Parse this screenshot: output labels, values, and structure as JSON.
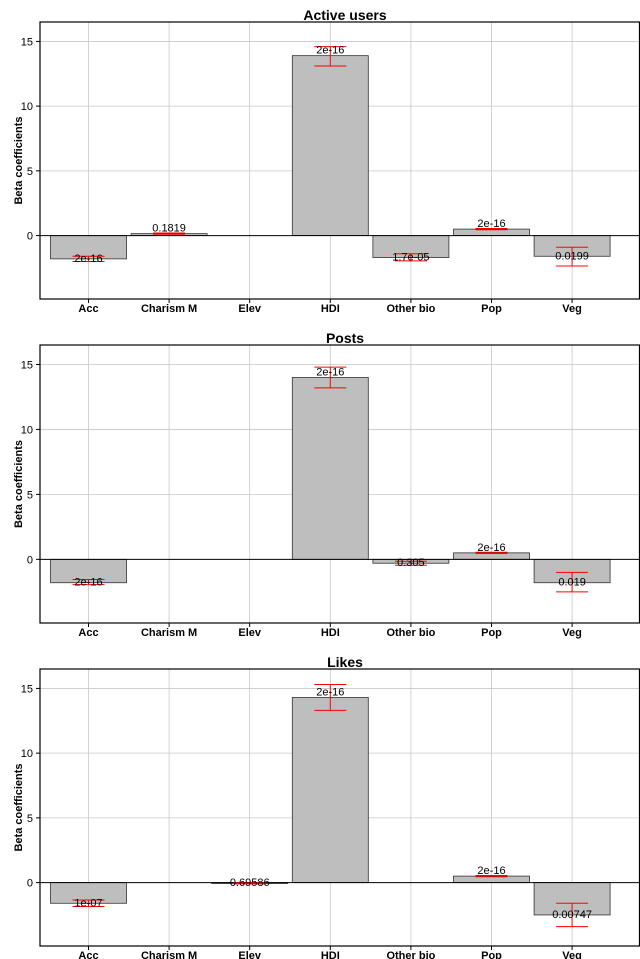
{
  "chart_data": [
    {
      "type": "bar",
      "title": "Active users",
      "ylabel": "Beta coefficients",
      "xlabel": "",
      "ylim": [
        -4.9,
        16.5
      ],
      "yticks": [
        0,
        5,
        10,
        15
      ],
      "grid": true,
      "categories": [
        "Acc",
        "Charism M",
        "Elev",
        "HDI",
        "Other bio",
        "Pop",
        "Veg"
      ],
      "values": [
        -1.8,
        0.15,
        null,
        13.9,
        -1.7,
        0.5,
        -1.6
      ],
      "error_low": [
        -2.0,
        0.1,
        null,
        13.1,
        -1.95,
        0.45,
        -2.35
      ],
      "error_high": [
        -1.6,
        0.2,
        null,
        14.6,
        -1.4,
        0.55,
        -0.9
      ],
      "annotations": [
        "2e-16",
        "0.1819",
        "",
        "2e-16",
        "1.7e-05",
        "2e-16",
        "0.0199"
      ],
      "colors": {
        "bar": "#bebebe",
        "error": "#ff0000"
      }
    },
    {
      "type": "bar",
      "title": "Posts",
      "ylabel": "Beta coefficients",
      "xlabel": "",
      "ylim": [
        -4.9,
        16.5
      ],
      "yticks": [
        0,
        5,
        10,
        15
      ],
      "grid": true,
      "categories": [
        "Acc",
        "Charism M",
        "Elev",
        "HDI",
        "Other bio",
        "Pop",
        "Veg"
      ],
      "values": [
        -1.8,
        null,
        null,
        14.0,
        -0.3,
        0.5,
        -1.8
      ],
      "error_low": [
        -1.95,
        null,
        null,
        13.2,
        -0.45,
        0.45,
        -2.5
      ],
      "error_high": [
        -1.55,
        null,
        null,
        14.8,
        -0.15,
        0.55,
        -1.0
      ],
      "annotations": [
        "2e-16",
        "",
        "",
        "2e-16",
        "0.305",
        "2e-16",
        "0.019"
      ],
      "colors": {
        "bar": "#bebebe",
        "error": "#ff0000"
      }
    },
    {
      "type": "bar",
      "title": "Likes",
      "ylabel": "Beta coefficients",
      "xlabel": "",
      "ylim": [
        -4.9,
        16.5
      ],
      "yticks": [
        0,
        5,
        10,
        15
      ],
      "grid": true,
      "categories": [
        "Acc",
        "Charism M",
        "Elev",
        "HDI",
        "Other bio",
        "Pop",
        "Veg"
      ],
      "values": [
        -1.6,
        null,
        -0.05,
        14.3,
        null,
        0.5,
        -2.5
      ],
      "error_low": [
        -1.85,
        null,
        -0.1,
        13.3,
        null,
        0.45,
        -3.4
      ],
      "error_high": [
        -1.35,
        null,
        0.0,
        15.3,
        null,
        0.55,
        -1.6
      ],
      "annotations": [
        "1e-07",
        "",
        "0.69586",
        "2e-16",
        "",
        "2e-16",
        "0.00747"
      ],
      "colors": {
        "bar": "#bebebe",
        "error": "#ff0000"
      }
    }
  ]
}
